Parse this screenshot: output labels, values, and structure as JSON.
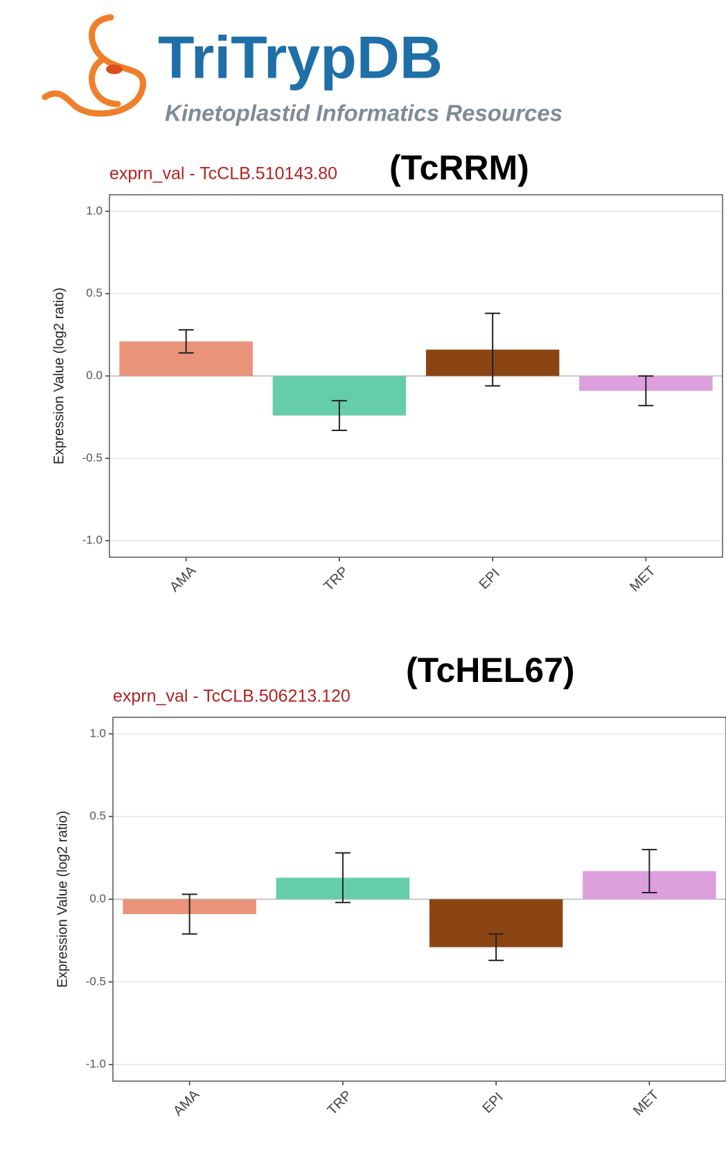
{
  "logo": {
    "title": "TriTrypDB",
    "subtitle": "Kinetoplastid Informatics Resources"
  },
  "chart_data": [
    {
      "type": "bar",
      "title": "exprn_val - TcCLB.510143.80",
      "annotation": "(TcRRM)",
      "y_label": "Expression Value (log2 ratio)",
      "categories": [
        "AMA",
        "TRP",
        "EPI",
        "MET"
      ],
      "values": [
        0.21,
        -0.24,
        0.16,
        -0.09
      ],
      "errors": [
        0.07,
        0.09,
        0.22,
        0.09
      ],
      "colors": [
        "#e8937a",
        "#66cdaa",
        "#8b4513",
        "#dda0dd"
      ],
      "ylim": [
        -1.1,
        1.1
      ],
      "yticks": [
        {
          "value": 1,
          "label": "1.0"
        },
        {
          "value": 0.5,
          "label": "0.5"
        },
        {
          "value": 0,
          "label": "0.0"
        },
        {
          "value": -0.5,
          "label": "-0.5"
        },
        {
          "value": -1,
          "label": "-1.0"
        }
      ],
      "grid": true
    },
    {
      "type": "bar",
      "title": "exprn_val - TcCLB.506213.120",
      "annotation": "(TcHEL67)",
      "y_label": "Expression Value (log2 ratio)",
      "categories": [
        "AMA",
        "TRP",
        "EPI",
        "MET"
      ],
      "values": [
        -0.09,
        0.13,
        -0.29,
        0.17
      ],
      "errors": [
        0.12,
        0.15,
        0.08,
        0.13
      ],
      "colors": [
        "#e8937a",
        "#66cdaa",
        "#8b4513",
        "#dda0dd"
      ],
      "ylim": [
        -1.1,
        1.1
      ],
      "yticks": [
        {
          "value": 1,
          "label": "1.0"
        },
        {
          "value": 0.5,
          "label": "0.5"
        },
        {
          "value": 0,
          "label": "0.0"
        },
        {
          "value": -0.5,
          "label": "-0.5"
        },
        {
          "value": -1,
          "label": "-1.0"
        }
      ],
      "grid": true
    }
  ]
}
